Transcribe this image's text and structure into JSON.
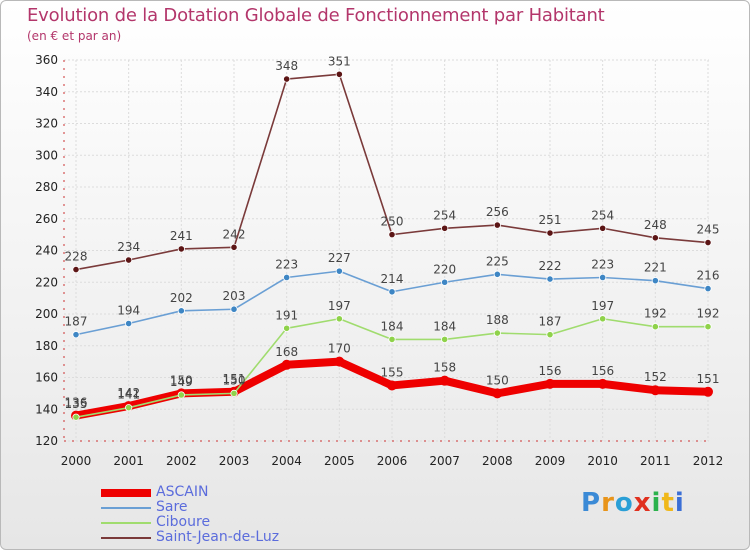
{
  "title": "Evolution de la Dotation Globale de Fonctionnement par Habitant",
  "subtitle": "(en € et par an)",
  "logo_text": "Proxiti",
  "chart_data": {
    "type": "line",
    "title": "Evolution de la Dotation Globale de Fonctionnement par Habitant",
    "ylabel": "(en € et par an)",
    "xlabel": "",
    "x": [
      "2000",
      "2001",
      "2002",
      "2003",
      "2004",
      "2005",
      "2006",
      "2007",
      "2008",
      "2009",
      "2010",
      "2011",
      "2012"
    ],
    "ylim": [
      120,
      360
    ],
    "yticks": [
      120,
      140,
      160,
      180,
      200,
      220,
      240,
      260,
      280,
      300,
      320,
      340,
      360
    ],
    "series": [
      {
        "name": "ASCAIN",
        "color": "#ee0000",
        "marker": "#ee0000",
        "values": [
          136,
          142,
          150,
          151,
          168,
          170,
          155,
          158,
          150,
          156,
          156,
          152,
          151
        ],
        "labels": [
          "136",
          "142",
          "150",
          "151",
          "168",
          "170",
          "155",
          "158",
          "150",
          "156",
          "156",
          "152",
          "151"
        ]
      },
      {
        "name": "Sare",
        "color": "#6a9fd4",
        "marker": "#3e86c4",
        "values": [
          187,
          194,
          202,
          203,
          223,
          227,
          214,
          220,
          225,
          222,
          223,
          221,
          216
        ],
        "labels": [
          "187",
          "194",
          "202",
          "203",
          "223",
          "227",
          "214",
          "220",
          "225",
          "222",
          "223",
          "221",
          "216"
        ]
      },
      {
        "name": "Ciboure",
        "color": "#a0dc6e",
        "marker": "#8fd24a",
        "values": [
          135,
          141,
          149,
          150,
          191,
          197,
          184,
          184,
          188,
          187,
          197,
          192,
          192
        ],
        "labels": [
          "135",
          "141",
          "149",
          "150",
          "191",
          "197",
          "184",
          "184",
          "188",
          "187",
          "197",
          "192",
          "192"
        ]
      },
      {
        "name": "Saint-Jean-de-Luz",
        "color": "#7a3a3a",
        "marker": "#5c1515",
        "values": [
          228,
          234,
          241,
          242,
          348,
          351,
          250,
          254,
          256,
          251,
          254,
          248,
          245
        ],
        "labels": [
          "228",
          "234",
          "241",
          "242",
          "348",
          "351",
          "250",
          "254",
          "256",
          "251",
          "254",
          "248",
          "245"
        ]
      }
    ]
  },
  "legend": [
    {
      "name": "ASCAIN",
      "color": "#ee0000"
    },
    {
      "name": "Sare",
      "color": "#6a9fd4"
    },
    {
      "name": "Ciboure",
      "color": "#a0dc6e"
    },
    {
      "name": "Saint-Jean-de-Luz",
      "color": "#7a3a3a"
    }
  ]
}
